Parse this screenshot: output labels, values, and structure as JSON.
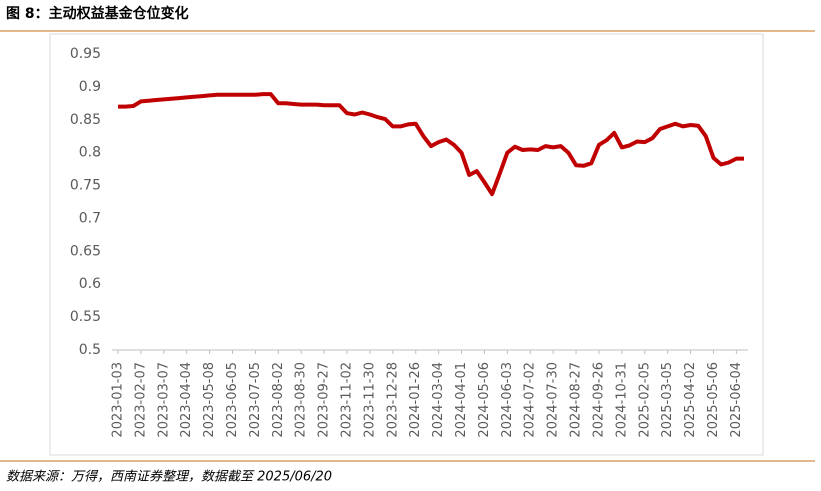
{
  "header": {
    "title": "图 8：主动权益基金仓位变化"
  },
  "chart_data": {
    "type": "line",
    "categories": [
      "2023-01-03",
      null,
      null,
      "2023-02-07",
      null,
      null,
      "2023-03-07",
      null,
      null,
      "2023-04-04",
      null,
      null,
      "2023-05-08",
      null,
      null,
      "2023-06-05",
      null,
      null,
      "2023-07-05",
      null,
      null,
      "2023-08-02",
      null,
      null,
      "2023-08-30",
      null,
      null,
      "2023-09-27",
      null,
      null,
      "2023-11-02",
      null,
      null,
      "2023-11-30",
      null,
      null,
      "2023-12-28",
      null,
      null,
      "2024-01-26",
      null,
      null,
      "2024-03-04",
      null,
      null,
      "2024-04-01",
      null,
      null,
      "2024-05-06",
      null,
      null,
      "2024-06-03",
      null,
      null,
      "2024-07-02",
      null,
      null,
      "2024-07-30",
      null,
      null,
      "2024-08-27",
      null,
      null,
      "2024-09-26",
      null,
      null,
      "2024-10-31",
      null,
      null,
      "2025-02-05",
      null,
      null,
      "2025-03-05",
      null,
      null,
      "2025-04-02",
      null,
      null,
      "2025-05-06",
      null,
      null,
      "2025-06-04",
      null
    ],
    "series": [
      {
        "color": "#c00000",
        "values": [
          0.87,
          0.87,
          0.871,
          0.878,
          0.879,
          0.88,
          0.881,
          0.882,
          0.883,
          0.884,
          0.885,
          0.886,
          0.887,
          0.888,
          0.888,
          0.888,
          0.888,
          0.888,
          0.888,
          0.889,
          0.889,
          0.875,
          0.875,
          0.874,
          0.873,
          0.873,
          0.873,
          0.872,
          0.872,
          0.872,
          0.86,
          0.858,
          0.861,
          0.858,
          0.854,
          0.851,
          0.84,
          0.84,
          0.843,
          0.844,
          0.825,
          0.81,
          0.816,
          0.82,
          0.812,
          0.8,
          0.766,
          0.772,
          0.755,
          0.737,
          0.768,
          0.8,
          0.809,
          0.804,
          0.805,
          0.804,
          0.81,
          0.808,
          0.81,
          0.8,
          0.781,
          0.78,
          0.784,
          0.812,
          0.819,
          0.83,
          0.808,
          0.811,
          0.817,
          0.816,
          0.822,
          0.836,
          0.84,
          0.844,
          0.84,
          0.842,
          0.841,
          0.825,
          0.792,
          0.782,
          0.785,
          0.791,
          0.791
        ]
      }
    ],
    "ylim": [
      0.5,
      0.95
    ],
    "yticks": [
      0.5,
      0.55,
      0.6,
      0.65,
      0.7,
      0.75,
      0.8,
      0.85,
      0.9,
      0.95
    ],
    "grid": false
  },
  "footer": {
    "source": "数据来源：万得，西南证券整理，数据截至 2025/06/20"
  }
}
